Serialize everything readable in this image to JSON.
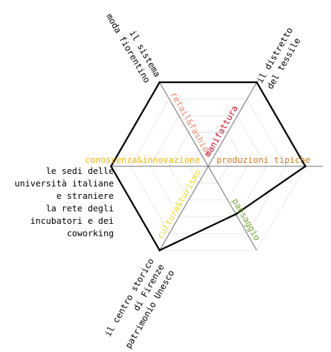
{
  "chart_data": {
    "type": "radar",
    "categories": [
      "retail&fashion",
      "manifattura",
      "produzioni tipiche",
      "paesaggio",
      "cultura&turismo",
      "conoscenza&innovazione"
    ],
    "category_colors": [
      "#f08a6a",
      "#d0102a",
      "#c97a1e",
      "#6fa52a",
      "#e8dc22",
      "#f2b400"
    ],
    "values": [
      100,
      100,
      100,
      57,
      100,
      100
    ],
    "rlim": [
      0,
      100
    ],
    "rticks": [
      20,
      40,
      60,
      80,
      100
    ],
    "grid": true,
    "line_color": "#000000",
    "annotations": [
      [
        "il sistema",
        "moda fiorentino"
      ],
      [
        "il distretto",
        "del tessile"
      ],
      [
        "le sedi delle",
        "università italiane",
        "e straniere",
        "la rete degli",
        "incubatori e dei",
        "coworking"
      ],
      [
        "il centro storico",
        "di Firenze",
        "patrimonio Unesco"
      ]
    ]
  }
}
